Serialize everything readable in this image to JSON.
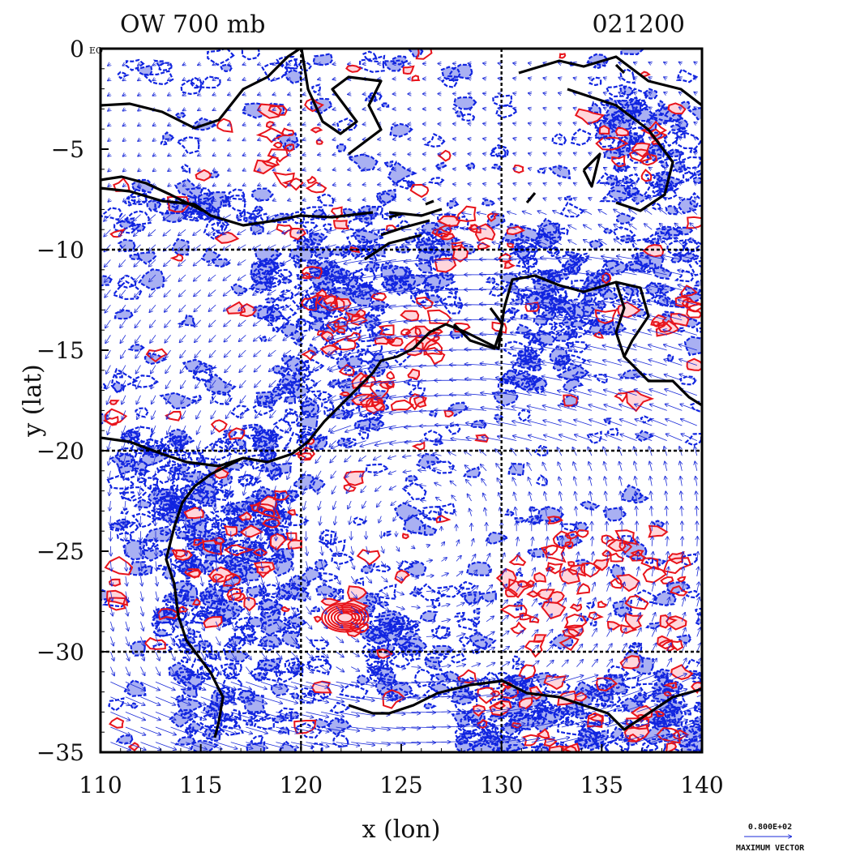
{
  "header": {
    "title": "OW 700 mb",
    "time": "021200"
  },
  "axes": {
    "xlabel": "x (lon)",
    "ylabel": "y (lat)",
    "xlim": [
      110,
      140
    ],
    "ylim": [
      -35,
      0
    ],
    "x_ticks": [
      "110",
      "115",
      "120",
      "125",
      "130",
      "135",
      "140"
    ],
    "y_ticks": [
      "0",
      "−5",
      "−10",
      "−15",
      "−20",
      "−25",
      "−30",
      "−35"
    ],
    "y_zero_suffix": "EQ",
    "grid_lon": [
      120,
      130
    ],
    "grid_lat": [
      -10,
      -20,
      -30
    ]
  },
  "legend": {
    "value": "0.800E+02",
    "label": "MAXIMUM VECTOR"
  },
  "colors": {
    "positive_contour": "#e8141b",
    "positive_fill": "#ffd6dc",
    "negative_contour": "#1024e0",
    "negative_fill": "#a9b0f2",
    "coastline": "#000000",
    "vector": "#1a2ad8"
  },
  "chart_data": {
    "type": "map",
    "field": "Okubo-Weiss parameter with wind vectors",
    "level": "700 mb",
    "region": {
      "lon": [
        110,
        140
      ],
      "lat": [
        -35,
        0
      ]
    },
    "features": [
      {
        "name": "negative OW band",
        "lon": [
          111,
          119
        ],
        "lat": [
          -26,
          -19
        ]
      },
      {
        "name": "positive OW maximum",
        "lon": [
          122,
          123
        ],
        "lat": [
          -29,
          -28
        ]
      },
      {
        "name": "positive OW cluster",
        "lon": [
          131,
          137
        ],
        "lat": [
          -30,
          -24
        ]
      },
      {
        "name": "anticyclonic circulation",
        "lon": [
          122,
          130
        ],
        "lat": [
          -28,
          -20
        ]
      }
    ]
  }
}
